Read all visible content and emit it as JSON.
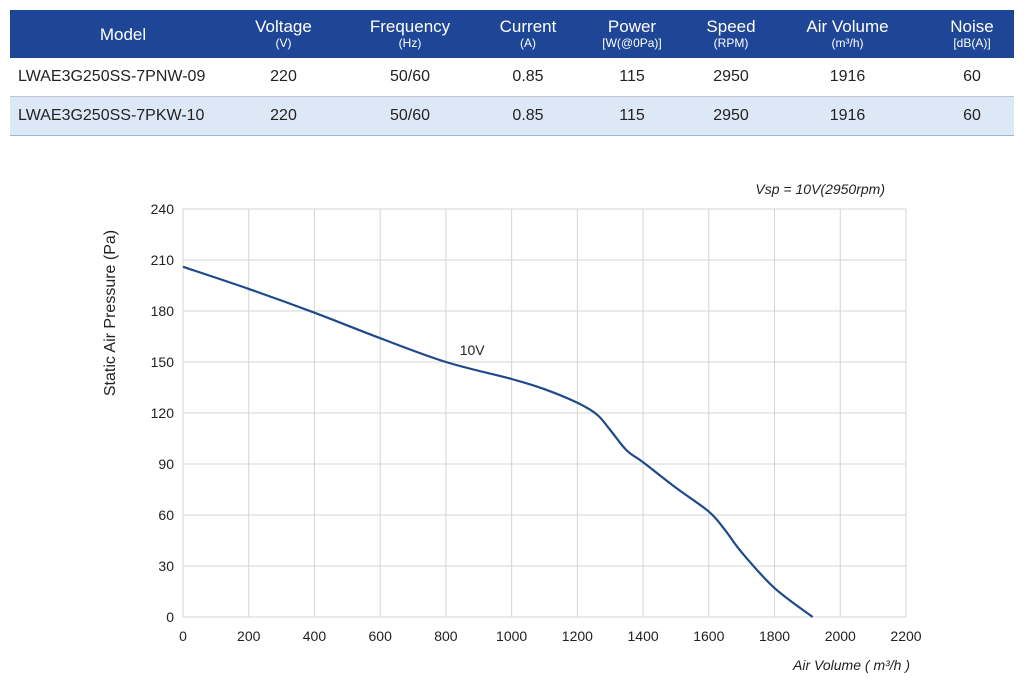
{
  "table": {
    "headers": [
      {
        "label": "Model",
        "unit": ""
      },
      {
        "label": "Voltage",
        "unit": "(V)"
      },
      {
        "label": "Frequency",
        "unit": "(Hz)"
      },
      {
        "label": "Current",
        "unit": "(A)"
      },
      {
        "label": "Power",
        "unit": "[W(@0Pa)]"
      },
      {
        "label": "Speed",
        "unit": "(RPM)"
      },
      {
        "label": "Air Volume",
        "unit": "(m³/h)"
      },
      {
        "label": "Noise",
        "unit": "[dB(A)]"
      }
    ],
    "rows": [
      [
        "LWAE3G250SS-7PNW-09",
        "220",
        "50/60",
        "0.85",
        "115",
        "2950",
        "1916",
        "60"
      ],
      [
        "LWAE3G250SS-7PKW-10",
        "220",
        "50/60",
        "0.85",
        "115",
        "2950",
        "1916",
        "60"
      ]
    ],
    "colors": {
      "header_bg": "#1f4696",
      "alt_row_bg": "#dde8f6"
    }
  },
  "chart_data": {
    "type": "line",
    "title": "Vsp = 10V(2950rpm)",
    "xlabel": "Air Volume ( m³/h )",
    "ylabel": "Static Air Pressure  (Pa)",
    "xlim": [
      0,
      2200
    ],
    "ylim": [
      0,
      240
    ],
    "x_ticks": [
      0,
      200,
      400,
      600,
      800,
      1000,
      1200,
      1400,
      1600,
      1800,
      2000,
      2200
    ],
    "y_ticks": [
      0,
      30,
      60,
      90,
      120,
      150,
      180,
      210,
      240
    ],
    "grid": true,
    "series": [
      {
        "name": "10V",
        "color": "#1f4a8a",
        "x": [
          0,
          200,
          400,
          600,
          800,
          1000,
          1100,
          1200,
          1260,
          1300,
          1350,
          1400,
          1500,
          1600,
          1650,
          1700,
          1800,
          1916
        ],
        "y": [
          206,
          193,
          179,
          164,
          150,
          140,
          134,
          126,
          119,
          110,
          98,
          91,
          76,
          62,
          51,
          38,
          17,
          0
        ]
      }
    ],
    "annotations": [
      {
        "text": "10V",
        "x": 880,
        "y": 154
      }
    ]
  }
}
